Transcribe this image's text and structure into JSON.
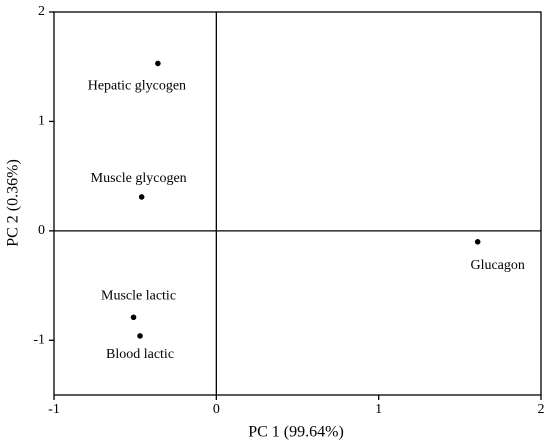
{
  "chart_data": {
    "type": "scatter",
    "x_label": "PC 1 (99.64%)",
    "y_label": "PC 2 (0.36%)",
    "point_labels": [
      "Hepatic glycogen",
      "Muscle glycogen",
      "Glucagon",
      "Muscle lactic",
      "Blood lactic"
    ],
    "x": [
      -0.36,
      -0.46,
      1.61,
      -0.51,
      -0.47
    ],
    "values": [
      1.53,
      0.31,
      -0.1,
      -0.79,
      -0.96
    ],
    "color": "#000000",
    "xlim": [
      -1,
      2
    ],
    "ylim": [
      -1.5,
      2
    ],
    "xticks": [
      -1,
      0,
      1,
      2
    ],
    "yticks": [
      -1,
      0,
      1,
      2
    ]
  }
}
